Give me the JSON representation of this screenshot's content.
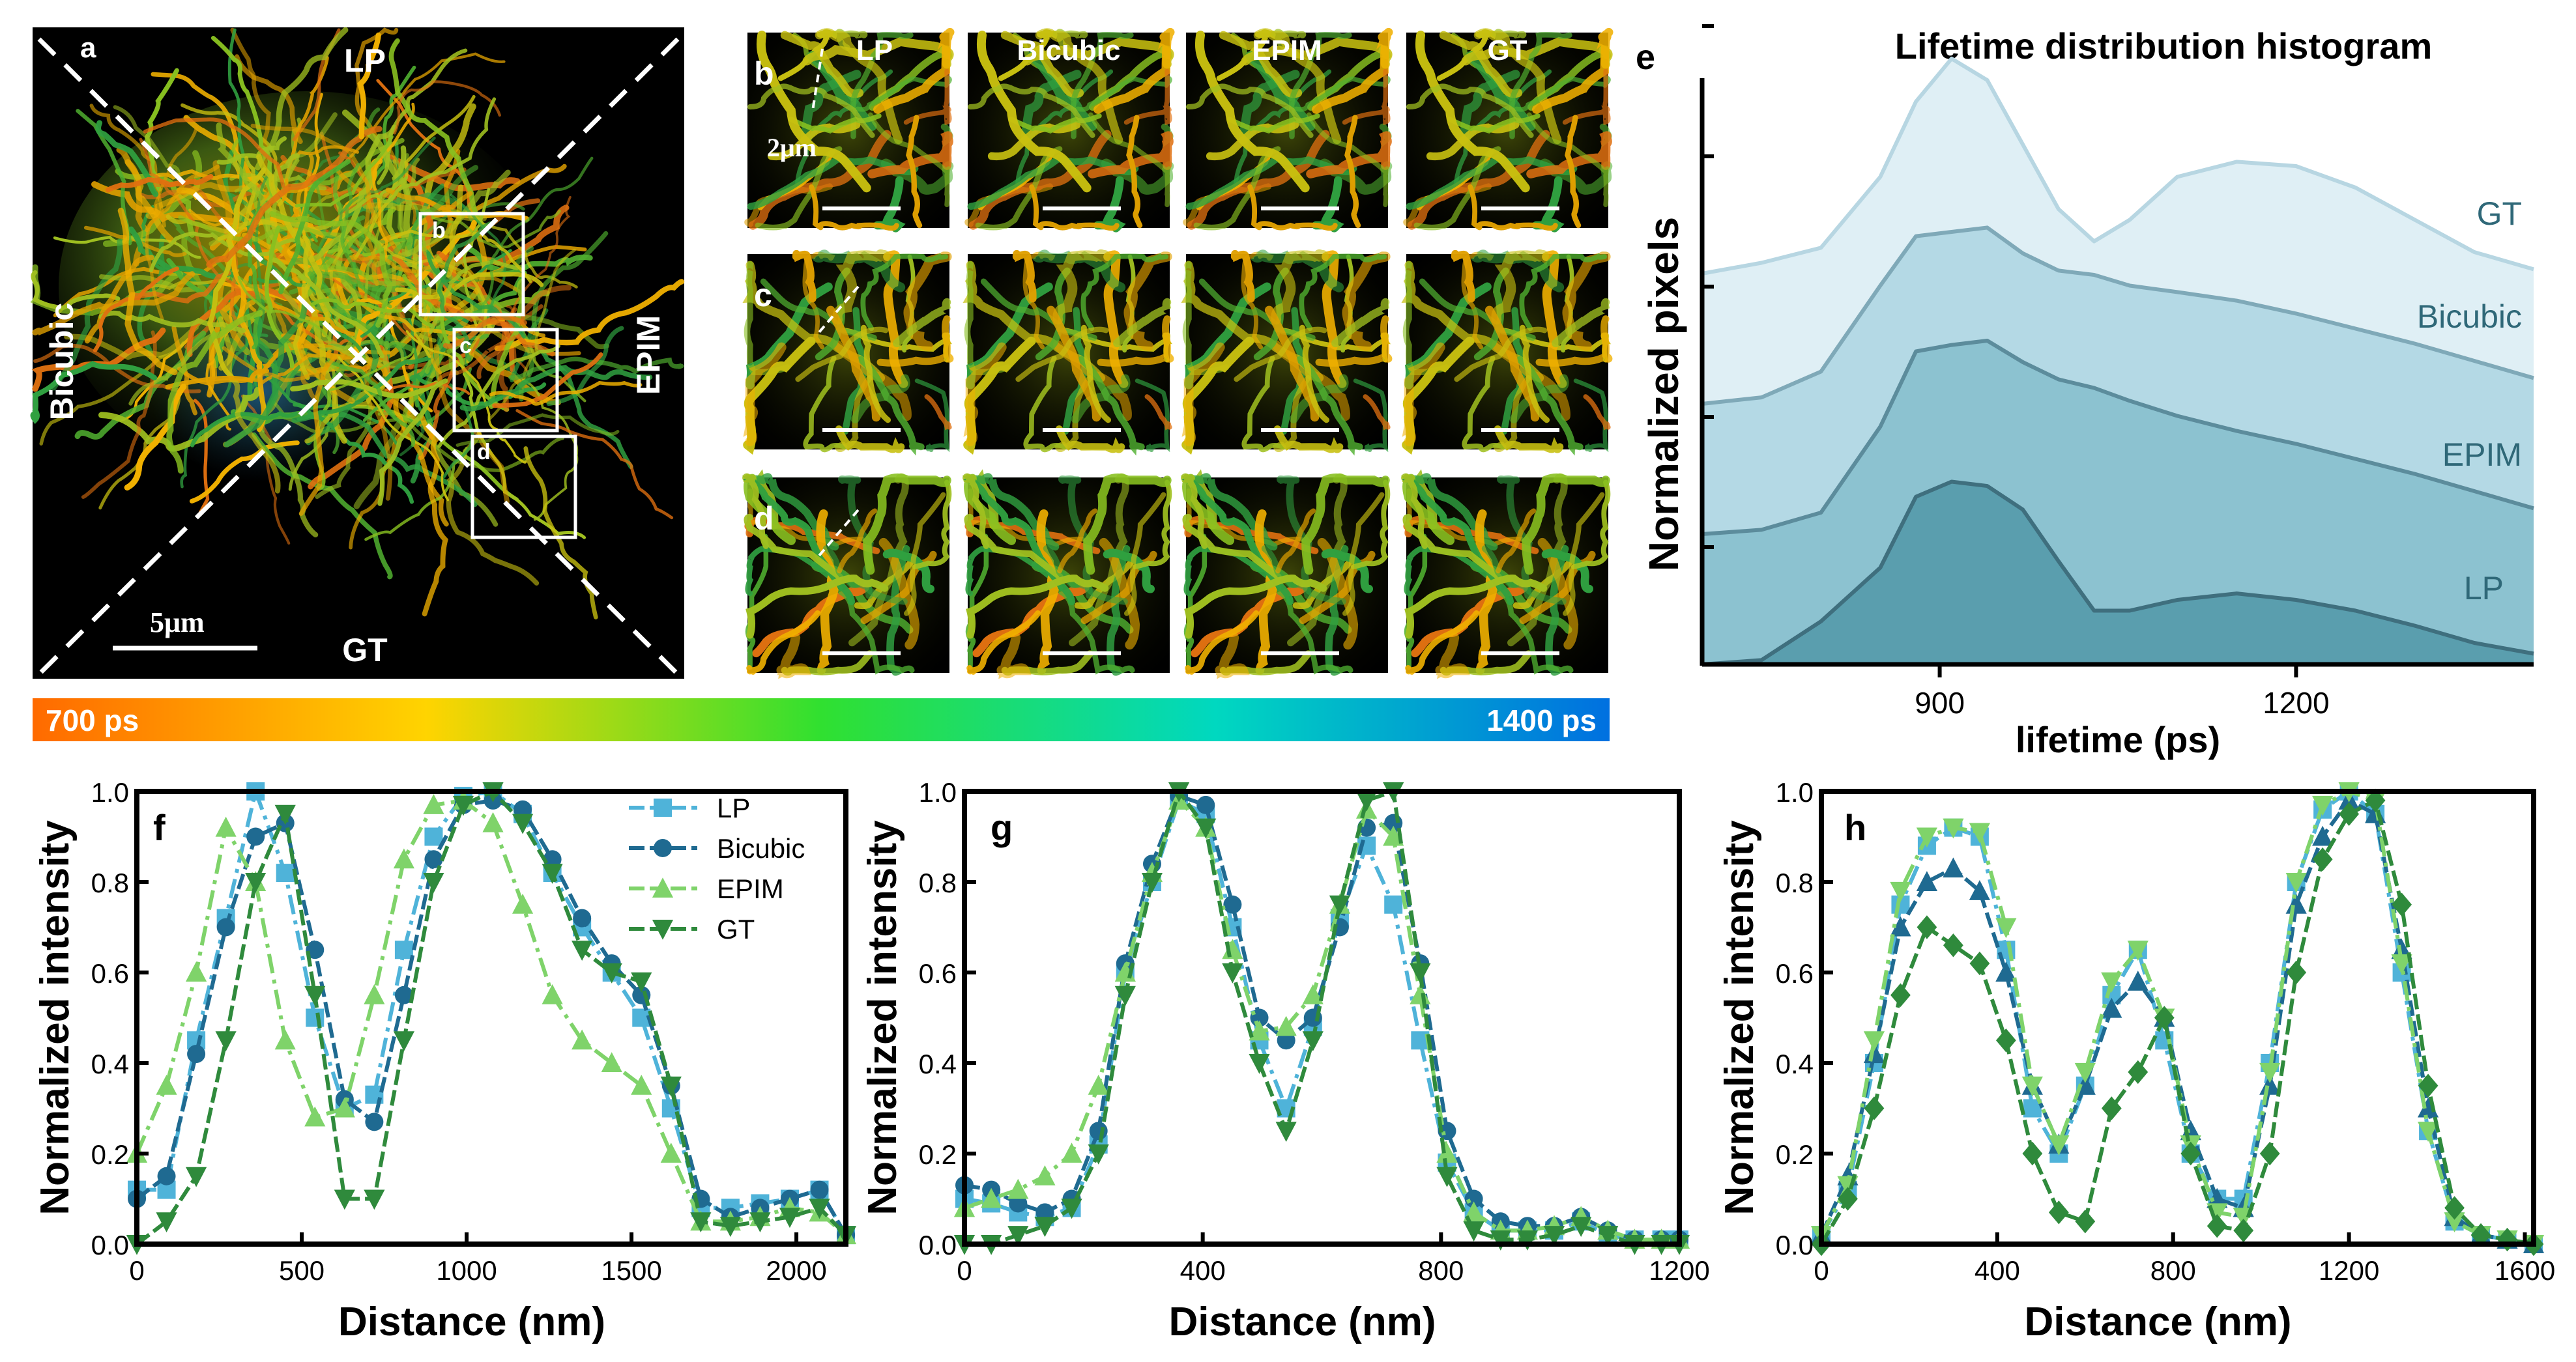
{
  "panel_letters": {
    "a": "a",
    "b": "b",
    "c": "c",
    "d": "d",
    "e": "e",
    "f": "f",
    "g": "g",
    "h": "h"
  },
  "panel_a": {
    "top": "LP",
    "left": "Bicubic",
    "right": "EPIM",
    "bottom": "GT",
    "scale_label": "5μm",
    "box_labels": [
      "b",
      "c",
      "d"
    ]
  },
  "crops": {
    "columns": [
      "LP",
      "Bicubic",
      "EPIM",
      "GT"
    ],
    "rows": [
      "b",
      "c",
      "d"
    ],
    "scale_label": "2μm"
  },
  "colorbar": {
    "left_label": "700 ps",
    "right_label": "1400 ps",
    "colors": [
      "#ff6a00",
      "#ffd400",
      "#30e030",
      "#00d8c0",
      "#0070e0"
    ]
  },
  "colors": {
    "LP": "#4fb3d9",
    "Bicubic": "#1f6a91",
    "EPIM": "#7fd36a",
    "GT": "#2f8a3c",
    "hist_fill": [
      "#dfeff5",
      "#b4d9e5",
      "#8cc2d0",
      "#5a9eae"
    ],
    "hist_line": [
      "#b7d6e2",
      "#7fa9b8",
      "#5c8c9c",
      "#3f6f7e"
    ]
  },
  "chart_data": [
    {
      "id": "e",
      "type": "area",
      "title": "Lifetime distribution histogram",
      "xlabel": "lifetime (ps)",
      "ylabel": "Normalized pixels",
      "xlim": [
        700,
        1400
      ],
      "xticks": [
        900,
        1200
      ],
      "series_labels": [
        "GT",
        "Bicubic",
        "EPIM",
        "LP"
      ],
      "x": [
        700,
        750,
        800,
        850,
        880,
        910,
        940,
        970,
        1000,
        1030,
        1060,
        1100,
        1150,
        1200,
        1250,
        1300,
        1350,
        1400
      ],
      "series": [
        {
          "name": "GT",
          "offset": 3,
          "values": [
            0.0,
            0.05,
            0.12,
            0.45,
            0.8,
            1.0,
            0.9,
            0.6,
            0.3,
            0.15,
            0.25,
            0.45,
            0.52,
            0.5,
            0.4,
            0.25,
            0.1,
            0.02
          ]
        },
        {
          "name": "Bicubic",
          "offset": 2,
          "values": [
            0.0,
            0.03,
            0.15,
            0.55,
            0.78,
            0.8,
            0.82,
            0.7,
            0.62,
            0.6,
            0.55,
            0.52,
            0.48,
            0.42,
            0.35,
            0.28,
            0.2,
            0.12
          ]
        },
        {
          "name": "EPIM",
          "offset": 1,
          "values": [
            0.0,
            0.02,
            0.1,
            0.5,
            0.85,
            0.88,
            0.9,
            0.8,
            0.72,
            0.68,
            0.62,
            0.55,
            0.48,
            0.42,
            0.35,
            0.28,
            0.2,
            0.12
          ]
        },
        {
          "name": "LP",
          "offset": 0,
          "values": [
            0.0,
            0.02,
            0.2,
            0.45,
            0.78,
            0.85,
            0.83,
            0.72,
            0.48,
            0.25,
            0.25,
            0.3,
            0.33,
            0.3,
            0.25,
            0.18,
            0.1,
            0.05
          ]
        }
      ]
    },
    {
      "id": "f",
      "type": "line",
      "xlabel": "Distance (nm)",
      "ylabel": "Normalized intensity",
      "xlim": [
        0,
        2150
      ],
      "ylim": [
        0,
        1.0
      ],
      "xticks": [
        0,
        500,
        1000,
        1500,
        2000
      ],
      "yticks": [
        0.0,
        0.2,
        0.4,
        0.6,
        0.8,
        1.0
      ],
      "legend": [
        "LP",
        "Bicubic",
        "EPIM",
        "GT"
      ],
      "x": [
        0,
        90,
        180,
        270,
        360,
        450,
        540,
        630,
        720,
        810,
        900,
        990,
        1080,
        1170,
        1260,
        1350,
        1440,
        1530,
        1620,
        1710,
        1800,
        1890,
        1980,
        2070,
        2150
      ],
      "series": [
        {
          "name": "LP",
          "marker": "square",
          "values": [
            0.12,
            0.12,
            0.45,
            0.72,
            1.0,
            0.82,
            0.5,
            0.3,
            0.33,
            0.65,
            0.9,
            0.99,
            1.0,
            0.95,
            0.82,
            0.7,
            0.6,
            0.5,
            0.3,
            0.08,
            0.08,
            0.09,
            0.1,
            0.12,
            0.02
          ]
        },
        {
          "name": "Bicubic",
          "marker": "circle",
          "values": [
            0.1,
            0.15,
            0.42,
            0.7,
            0.9,
            0.93,
            0.65,
            0.32,
            0.27,
            0.55,
            0.85,
            0.97,
            0.98,
            0.96,
            0.85,
            0.72,
            0.62,
            0.55,
            0.35,
            0.1,
            0.06,
            0.08,
            0.1,
            0.12,
            0.02
          ]
        },
        {
          "name": "EPIM",
          "marker": "triangle-up",
          "values": [
            0.2,
            0.35,
            0.6,
            0.92,
            0.8,
            0.45,
            0.28,
            0.3,
            0.55,
            0.85,
            0.97,
            0.98,
            0.93,
            0.75,
            0.55,
            0.45,
            0.4,
            0.35,
            0.2,
            0.05,
            0.05,
            0.06,
            0.08,
            0.07,
            0.02
          ]
        },
        {
          "name": "GT",
          "marker": "triangle-down",
          "values": [
            0.0,
            0.05,
            0.15,
            0.45,
            0.8,
            0.95,
            0.55,
            0.1,
            0.1,
            0.45,
            0.8,
            0.97,
            1.0,
            0.93,
            0.82,
            0.65,
            0.6,
            0.58,
            0.35,
            0.05,
            0.04,
            0.05,
            0.06,
            0.08,
            0.02
          ]
        }
      ]
    },
    {
      "id": "g",
      "type": "line",
      "xlabel": "Distance (nm)",
      "ylabel": "Normalized intensity",
      "xlim": [
        0,
        1200
      ],
      "ylim": [
        0,
        1.0
      ],
      "xticks": [
        0,
        400,
        800,
        1200
      ],
      "yticks": [
        0.0,
        0.2,
        0.4,
        0.6,
        0.8,
        1.0
      ],
      "x": [
        0,
        45,
        90,
        135,
        180,
        225,
        270,
        315,
        360,
        405,
        450,
        495,
        540,
        585,
        630,
        675,
        720,
        765,
        810,
        855,
        900,
        945,
        990,
        1035,
        1080,
        1125,
        1170,
        1200
      ],
      "series": [
        {
          "name": "LP",
          "marker": "square",
          "values": [
            0.1,
            0.09,
            0.07,
            0.06,
            0.08,
            0.22,
            0.6,
            0.8,
            0.98,
            0.95,
            0.7,
            0.45,
            0.3,
            0.48,
            0.72,
            0.88,
            0.75,
            0.45,
            0.18,
            0.07,
            0.03,
            0.03,
            0.03,
            0.05,
            0.02,
            0.01,
            0.01,
            0.01
          ]
        },
        {
          "name": "Bicubic",
          "marker": "circle",
          "values": [
            0.13,
            0.12,
            0.09,
            0.07,
            0.1,
            0.25,
            0.62,
            0.84,
            0.99,
            0.97,
            0.75,
            0.5,
            0.45,
            0.5,
            0.7,
            0.92,
            0.93,
            0.62,
            0.25,
            0.1,
            0.05,
            0.04,
            0.04,
            0.06,
            0.03,
            0.01,
            0.01,
            0.01
          ]
        },
        {
          "name": "EPIM",
          "marker": "triangle-up",
          "values": [
            0.08,
            0.1,
            0.12,
            0.15,
            0.2,
            0.35,
            0.6,
            0.82,
            0.98,
            0.92,
            0.65,
            0.47,
            0.48,
            0.55,
            0.75,
            0.96,
            0.9,
            0.55,
            0.2,
            0.07,
            0.03,
            0.03,
            0.04,
            0.06,
            0.03,
            0.01,
            0.01,
            0.01
          ]
        },
        {
          "name": "GT",
          "marker": "triangle-down",
          "values": [
            0.0,
            0.0,
            0.02,
            0.04,
            0.08,
            0.2,
            0.55,
            0.8,
            1.0,
            0.92,
            0.6,
            0.4,
            0.25,
            0.45,
            0.75,
            0.98,
            1.0,
            0.6,
            0.15,
            0.03,
            0.01,
            0.01,
            0.02,
            0.04,
            0.02,
            0.0,
            0.0,
            0.0
          ]
        }
      ]
    },
    {
      "id": "h",
      "type": "line",
      "xlabel": "Distance (nm)",
      "ylabel": "Normalized intensity",
      "xlim": [
        0,
        1620
      ],
      "ylim": [
        0,
        1.0
      ],
      "xticks": [
        0,
        400,
        800,
        1200,
        1600
      ],
      "yticks": [
        0.0,
        0.2,
        0.4,
        0.6,
        0.8,
        1.0
      ],
      "x": [
        0,
        60,
        120,
        180,
        240,
        300,
        360,
        420,
        480,
        540,
        600,
        660,
        720,
        780,
        840,
        900,
        960,
        1020,
        1080,
        1140,
        1200,
        1260,
        1320,
        1380,
        1440,
        1500,
        1560,
        1620
      ],
      "series": [
        {
          "name": "LP",
          "marker": "square",
          "values": [
            0.02,
            0.12,
            0.4,
            0.75,
            0.88,
            0.92,
            0.9,
            0.65,
            0.3,
            0.2,
            0.35,
            0.55,
            0.65,
            0.45,
            0.2,
            0.1,
            0.1,
            0.4,
            0.8,
            0.96,
            1.0,
            0.95,
            0.6,
            0.25,
            0.05,
            0.02,
            0.01,
            0.0
          ]
        },
        {
          "name": "Bicubic",
          "marker": "triangle-up",
          "values": [
            0.02,
            0.15,
            0.42,
            0.7,
            0.8,
            0.83,
            0.78,
            0.6,
            0.35,
            0.22,
            0.35,
            0.52,
            0.58,
            0.5,
            0.25,
            0.1,
            0.08,
            0.35,
            0.75,
            0.9,
            0.98,
            0.95,
            0.65,
            0.3,
            0.06,
            0.02,
            0.01,
            0.0
          ]
        },
        {
          "name": "EPIM",
          "marker": "triangle-down",
          "values": [
            0.02,
            0.13,
            0.45,
            0.78,
            0.9,
            0.92,
            0.91,
            0.7,
            0.35,
            0.22,
            0.38,
            0.58,
            0.65,
            0.5,
            0.22,
            0.07,
            0.06,
            0.38,
            0.8,
            0.97,
            1.0,
            0.98,
            0.62,
            0.25,
            0.05,
            0.02,
            0.01,
            0.0
          ]
        },
        {
          "name": "GT",
          "marker": "diamond",
          "values": [
            0.0,
            0.1,
            0.3,
            0.55,
            0.7,
            0.66,
            0.62,
            0.45,
            0.2,
            0.07,
            0.05,
            0.3,
            0.38,
            0.5,
            0.2,
            0.04,
            0.03,
            0.2,
            0.6,
            0.85,
            0.95,
            0.98,
            0.75,
            0.35,
            0.08,
            0.02,
            0.01,
            0.0
          ]
        }
      ]
    }
  ]
}
